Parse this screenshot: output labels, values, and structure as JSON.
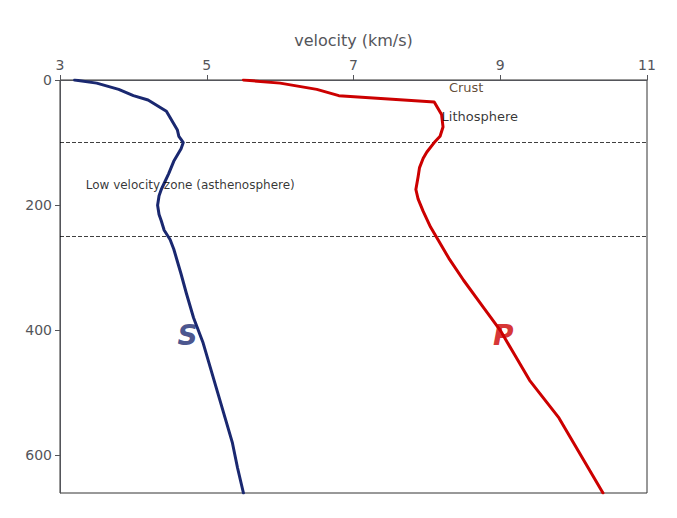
{
  "chart_data": {
    "type": "line",
    "xlabel": "velocity (km/s)",
    "xlim": [
      3,
      11
    ],
    "xticks": [
      3,
      5,
      7,
      9,
      11
    ],
    "ylim": [
      660,
      0
    ],
    "yticks": [
      0,
      200,
      400,
      600
    ],
    "grid": false,
    "hlines": [
      100,
      250
    ],
    "series": [
      {
        "color": "#1a2870",
        "x": [
          3.2,
          3.5,
          3.8,
          4.0,
          4.2,
          4.45,
          4.6,
          4.62,
          4.65,
          4.68,
          4.65,
          4.55,
          4.48,
          4.42,
          4.38,
          4.35,
          4.33,
          4.35,
          4.38,
          4.42,
          4.5,
          4.55,
          4.6,
          4.65,
          4.72,
          4.82,
          4.95,
          5.05,
          5.15,
          5.25,
          5.35,
          5.42,
          5.5
        ],
        "values": [
          0,
          5,
          15,
          25,
          32,
          50,
          80,
          90,
          95,
          100,
          110,
          130,
          150,
          165,
          175,
          185,
          200,
          215,
          225,
          240,
          255,
          270,
          290,
          310,
          340,
          380,
          420,
          460,
          500,
          540,
          580,
          620,
          660
        ]
      },
      {
        "color": "#cc0000",
        "x": [
          5.5,
          6.0,
          6.5,
          6.8,
          8.1,
          8.15,
          8.2,
          8.22,
          8.18,
          8.1,
          8.0,
          7.95,
          7.9,
          7.88,
          7.85,
          7.88,
          7.95,
          8.05,
          8.15,
          8.3,
          8.5,
          8.75,
          9.0,
          9.2,
          9.4,
          9.6,
          9.8,
          10.0,
          10.2,
          10.4
        ],
        "values": [
          0,
          5,
          15,
          25,
          35,
          45,
          55,
          75,
          90,
          100,
          115,
          125,
          140,
          155,
          175,
          190,
          210,
          235,
          255,
          285,
          320,
          360,
          400,
          440,
          480,
          510,
          540,
          580,
          620,
          660
        ]
      }
    ],
    "annotations": [
      {
        "text": "Crust",
        "x": 8.3,
        "y": 22,
        "color": "#3a1a00"
      },
      {
        "text": "Lithosphere",
        "x": 8.2,
        "y": 68,
        "color": "black"
      },
      {
        "text": "Low velocity zone (asthenosphere)",
        "x": 3.35,
        "y": 178,
        "color": "black"
      },
      {
        "text": "S",
        "x": 4.6,
        "y": 430,
        "color": "#1a2870"
      },
      {
        "text": "P",
        "x": 8.9,
        "y": 430,
        "color": "#cc0000"
      }
    ]
  }
}
